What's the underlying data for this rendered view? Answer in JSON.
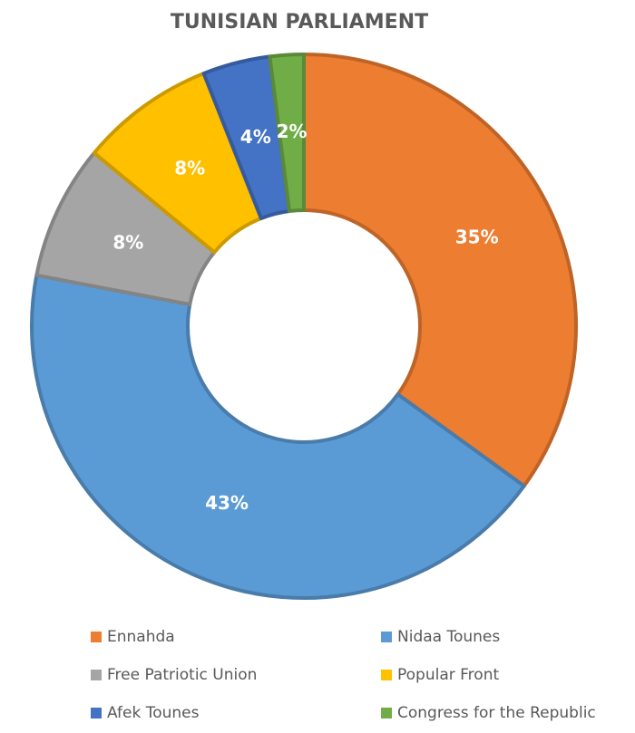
{
  "chart_data": {
    "type": "donut",
    "title": "TUNISIAN PARLIAMENT",
    "categories": [
      "Ennahda",
      "Nidaa Tounes",
      "Free Patriotic Union",
      "Popular Front",
      "Afek Tounes",
      "Congress for the Republic"
    ],
    "values": [
      35,
      43,
      8,
      8,
      4,
      2
    ],
    "value_labels": [
      "35%",
      "43%",
      "8%",
      "8%",
      "4%",
      "2%"
    ],
    "colors": [
      "#ED7D31",
      "#5B9BD5",
      "#A5A5A5",
      "#FFC000",
      "#4472C4",
      "#70AD47"
    ],
    "legend": "bottom"
  }
}
